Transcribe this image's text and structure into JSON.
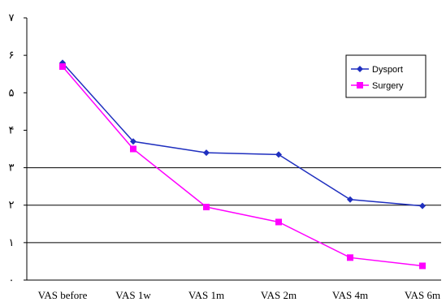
{
  "chart_data": {
    "type": "line",
    "categories": [
      "VAS before",
      "VAS 1w",
      "VAS 1m",
      "VAS 2m",
      "VAS 4m",
      "VAS 6m"
    ],
    "y_tick_labels": [
      "٠",
      "١",
      "٢",
      "٣",
      "۴",
      "۵",
      "۶",
      "٧"
    ],
    "ylim": [
      0,
      7
    ],
    "yticks": [
      0,
      1,
      2,
      3,
      4,
      5,
      6,
      7
    ],
    "gridlines_at": [
      1,
      2,
      3
    ],
    "legend_position": "right",
    "series": [
      {
        "name": "Dysport",
        "color": "#1f2fbf",
        "marker": "diamond",
        "values": [
          5.8,
          3.7,
          3.4,
          3.35,
          2.15,
          1.98
        ]
      },
      {
        "name": "Surgery",
        "color": "#ff00ff",
        "marker": "square",
        "values": [
          5.7,
          3.5,
          1.95,
          1.55,
          0.6,
          0.38
        ]
      }
    ]
  }
}
